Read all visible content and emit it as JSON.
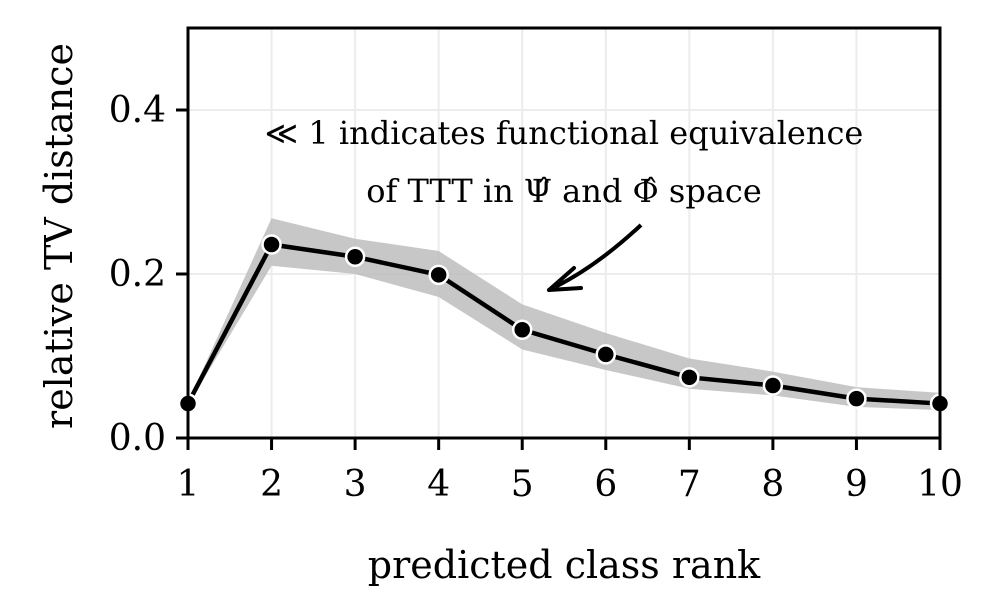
{
  "chart_data": {
    "type": "line",
    "xlabel": "predicted class rank",
    "ylabel": "relative TV distance",
    "xlim": [
      1,
      10
    ],
    "ylim": [
      0,
      0.5
    ],
    "x_ticks": [
      "1",
      "2",
      "3",
      "4",
      "5",
      "6",
      "7",
      "8",
      "9",
      "10"
    ],
    "y_ticks": [
      "0.0",
      "0.2",
      "0.4"
    ],
    "grid": true,
    "x": [
      1,
      2,
      3,
      4,
      5,
      6,
      7,
      8,
      9,
      10
    ],
    "series": [
      {
        "values": [
          0.042,
          0.236,
          0.221,
          0.199,
          0.132,
          0.102,
          0.074,
          0.064,
          0.048,
          0.042
        ],
        "band_lower": [
          0.04,
          0.21,
          0.2,
          0.172,
          0.108,
          0.083,
          0.06,
          0.052,
          0.038,
          0.034
        ],
        "band_upper": [
          0.044,
          0.268,
          0.243,
          0.228,
          0.163,
          0.128,
          0.097,
          0.081,
          0.062,
          0.055
        ],
        "color": "#000000",
        "band_color": "#bdbdbd"
      }
    ],
    "annotation": {
      "line1": "≪ 1 indicates functional equivalence",
      "line2": "of TTT in Ψ̂ and Φ̂ space",
      "arrow_to": [
        5.3,
        0.185
      ]
    }
  }
}
